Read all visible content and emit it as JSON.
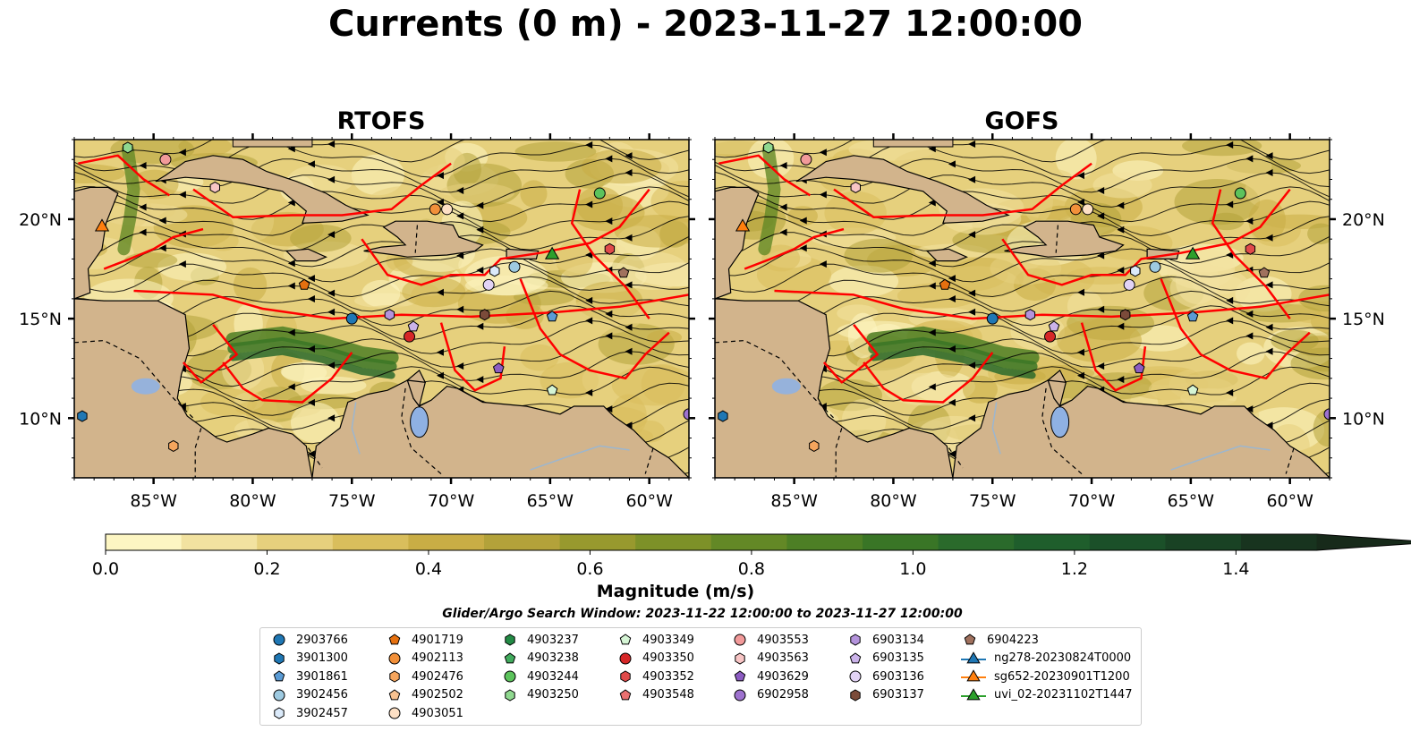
{
  "figure": {
    "title": "Currents (0 m) - 2023-11-27 12:00:00",
    "search_window": "Glider/Argo Search Window: 2023-11-22 12:00:00 to 2023-11-27 12:00:00"
  },
  "panels": [
    {
      "title": "RTOFS"
    },
    {
      "title": "GOFS"
    }
  ],
  "map_extent": {
    "lon": [
      -89,
      -58
    ],
    "lat": [
      7,
      24
    ]
  },
  "axes": {
    "lon_ticks": [
      -85,
      -80,
      -75,
      -70,
      -65,
      -60
    ],
    "lon_labels": [
      "85°W",
      "80°W",
      "75°W",
      "70°W",
      "65°W",
      "60°W"
    ],
    "lat_ticks": [
      10,
      15,
      20
    ],
    "lat_labels": [
      "10°N",
      "15°N",
      "20°N"
    ]
  },
  "colorbar": {
    "label": "Magnitude (m/s)",
    "range": [
      0,
      1.5
    ],
    "extend": "max",
    "tick_values": [
      0.0,
      0.2,
      0.4,
      0.6,
      0.8,
      1.0,
      1.2,
      1.4
    ],
    "tick_labels": [
      "0.0",
      "0.2",
      "0.4",
      "0.6",
      "0.8",
      "1.0",
      "1.2",
      "1.4"
    ],
    "colors": [
      "#fdf6c3",
      "#f2e2a0",
      "#e6d07d",
      "#d9be5c",
      "#c9ad45",
      "#b3a23a",
      "#98992e",
      "#7d9128",
      "#638826",
      "#4d7f25",
      "#397526",
      "#2a6a2b",
      "#1f5e2c",
      "#1b5029",
      "#194224",
      "#18341f",
      "#172a1a"
    ]
  },
  "colors": {
    "land": "#d2b48c",
    "lake": "#8fb1e3",
    "eez_lines": "#ff0000",
    "streamlines": "#000000",
    "rivers": "#9cb6cf"
  },
  "legend": {
    "columns": [
      [
        {
          "label": "2903766",
          "marker": "circle",
          "color": "#1f77b4"
        },
        {
          "label": "3901300",
          "marker": "hexagon",
          "color": "#1f77b4"
        },
        {
          "label": "3901861",
          "marker": "pentagon",
          "color": "#5a9bd5"
        },
        {
          "label": "3902456",
          "marker": "circle",
          "color": "#9ecae1"
        },
        {
          "label": "3902457",
          "marker": "hexagon",
          "color": "#dbeafa"
        }
      ],
      [
        {
          "label": "4901719",
          "marker": "pentagon",
          "color": "#e6700f"
        },
        {
          "label": "4902113",
          "marker": "circle",
          "color": "#f2903a"
        },
        {
          "label": "4902476",
          "marker": "hexagon",
          "color": "#f5a55d"
        },
        {
          "label": "4902502",
          "marker": "pentagon",
          "color": "#f8c290"
        },
        {
          "label": "4903051",
          "marker": "circle",
          "color": "#fde0c5"
        }
      ],
      [
        {
          "label": "4903237",
          "marker": "hexagon",
          "color": "#238b45"
        },
        {
          "label": "4903238",
          "marker": "pentagon",
          "color": "#41ab5d"
        },
        {
          "label": "4903244",
          "marker": "circle",
          "color": "#5cc35c"
        },
        {
          "label": "4903250",
          "marker": "hexagon",
          "color": "#8fd88f"
        }
      ],
      [
        {
          "label": "4903349",
          "marker": "pentagon",
          "color": "#d5f5d5"
        },
        {
          "label": "4903350",
          "marker": "circle",
          "color": "#d62728"
        },
        {
          "label": "4903352",
          "marker": "hexagon",
          "color": "#e04a4a"
        },
        {
          "label": "4903548",
          "marker": "pentagon",
          "color": "#ea7070"
        }
      ],
      [
        {
          "label": "4903553",
          "marker": "circle",
          "color": "#f29a9a"
        },
        {
          "label": "4903563",
          "marker": "hexagon",
          "color": "#f8c5c5"
        },
        {
          "label": "4903629",
          "marker": "pentagon",
          "color": "#8c5cc2"
        },
        {
          "label": "6902958",
          "marker": "circle",
          "color": "#9e72cf"
        }
      ],
      [
        {
          "label": "6903134",
          "marker": "hexagon",
          "color": "#b493dc"
        },
        {
          "label": "6903135",
          "marker": "pentagon",
          "color": "#cbb3ea"
        },
        {
          "label": "6903136",
          "marker": "circle",
          "color": "#e2d3f5"
        },
        {
          "label": "6903137",
          "marker": "hexagon",
          "color": "#7b4b3a"
        }
      ],
      [
        {
          "label": "6904223",
          "marker": "pentagon",
          "color": "#a0715e"
        },
        {
          "label": "ng278-20230824T0000",
          "marker": "triangle",
          "color": "#1f77b4"
        },
        {
          "label": "sg652-20230901T1200",
          "marker": "triangle",
          "color": "#ff7f0e"
        },
        {
          "label": "uvi_02-20231102T1447",
          "marker": "triangle",
          "color": "#2ca02c"
        }
      ]
    ]
  },
  "floats": [
    {
      "id": "2903766",
      "lon": -75.0,
      "lat": 15.0
    },
    {
      "id": "3901300",
      "lon": -88.6,
      "lat": 10.1
    },
    {
      "id": "3901861",
      "lon": -64.9,
      "lat": 15.1
    },
    {
      "id": "3902456",
      "lon": -66.8,
      "lat": 17.6
    },
    {
      "id": "3902457",
      "lon": -67.8,
      "lat": 17.4
    },
    {
      "id": "4901719",
      "lon": -77.4,
      "lat": 16.7
    },
    {
      "id": "4902113",
      "lon": -70.8,
      "lat": 20.5
    },
    {
      "id": "4902476",
      "lon": -84.0,
      "lat": 8.6
    },
    {
      "id": "4903051",
      "lon": -70.2,
      "lat": 20.5
    },
    {
      "id": "4903244",
      "lon": -62.5,
      "lat": 21.3
    },
    {
      "id": "4903250",
      "lon": -86.3,
      "lat": 23.6
    },
    {
      "id": "4903349",
      "lon": -64.9,
      "lat": 11.4
    },
    {
      "id": "4903350",
      "lon": -72.1,
      "lat": 14.1
    },
    {
      "id": "4903352",
      "lon": -62.0,
      "lat": 18.5
    },
    {
      "id": "4903553",
      "lon": -84.4,
      "lat": 23.0
    },
    {
      "id": "4903563",
      "lon": -81.9,
      "lat": 21.6
    },
    {
      "id": "4903629",
      "lon": -67.6,
      "lat": 12.5
    },
    {
      "id": "6902958",
      "lon": -58.0,
      "lat": 10.2
    },
    {
      "id": "6903134",
      "lon": -73.1,
      "lat": 15.2
    },
    {
      "id": "6903135",
      "lon": -71.9,
      "lat": 14.6
    },
    {
      "id": "6903136",
      "lon": -68.1,
      "lat": 16.7
    },
    {
      "id": "6903137",
      "lon": -68.3,
      "lat": 15.2
    },
    {
      "id": "6904223",
      "lon": -61.3,
      "lat": 17.3
    },
    {
      "id": "sg652-20230901T1200",
      "lon": -87.6,
      "lat": 19.6
    },
    {
      "id": "uvi_02-20231102T1447",
      "lon": -64.9,
      "lat": 18.2
    }
  ]
}
